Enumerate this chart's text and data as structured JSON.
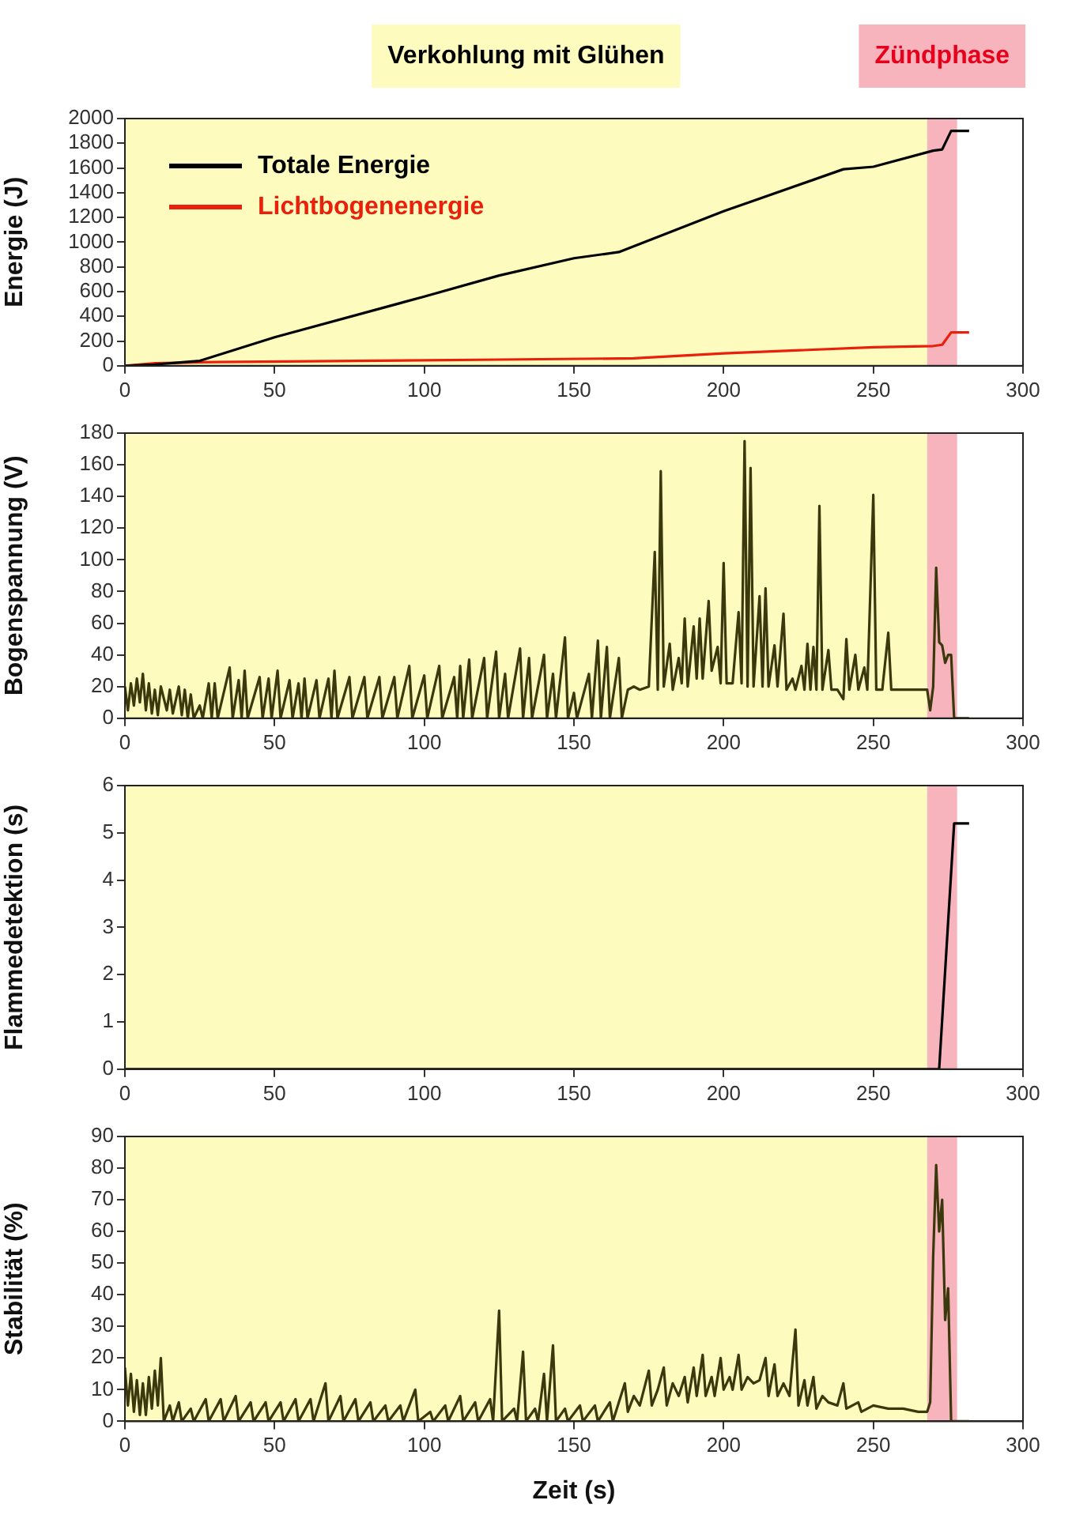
{
  "chart_data": [
    {
      "type": "line",
      "ylabel": "Energie (J)",
      "xlim": [
        0,
        300
      ],
      "xticks": [
        0,
        50,
        100,
        150,
        200,
        250,
        300
      ],
      "ylim": [
        0,
        2000
      ],
      "yticks": [
        0,
        200,
        400,
        600,
        800,
        1000,
        1200,
        1400,
        1600,
        1800,
        2000
      ],
      "grid": false,
      "legend": "top left",
      "marker": "none",
      "line_style": "solid",
      "bands": [
        {
          "axis": "x",
          "from": 0,
          "to": 268,
          "label": "Verkohlung mit Glühen",
          "color": "#fdfbbd"
        },
        {
          "axis": "x",
          "from": 268,
          "to": 278,
          "label": "Zündphase",
          "color": "#f8b4bc"
        }
      ],
      "series": [
        {
          "name": "Totale Energie",
          "color": "#000000",
          "x": [
            0,
            10,
            20,
            25,
            50,
            100,
            125,
            150,
            165,
            200,
            240,
            250,
            270,
            273,
            276,
            282
          ],
          "values": [
            0,
            10,
            30,
            40,
            230,
            560,
            730,
            870,
            920,
            1250,
            1590,
            1610,
            1740,
            1750,
            1900,
            1900
          ]
        },
        {
          "name": "Lichtbogenenergie",
          "color": "#e8200c",
          "x": [
            0,
            10,
            30,
            125,
            170,
            200,
            250,
            270,
            273,
            276,
            282
          ],
          "values": [
            0,
            20,
            30,
            50,
            60,
            100,
            150,
            160,
            170,
            270,
            270
          ]
        }
      ]
    },
    {
      "type": "line",
      "ylabel": "Bogenspannung (V)",
      "xlim": [
        0,
        300
      ],
      "xticks": [
        0,
        50,
        100,
        150,
        200,
        250,
        300
      ],
      "ylim": [
        0,
        180
      ],
      "yticks": [
        0,
        20,
        40,
        60,
        80,
        100,
        120,
        140,
        160,
        180
      ],
      "grid": false,
      "legend": false,
      "marker": "none",
      "line_style": "solid",
      "bands": [
        {
          "axis": "x",
          "from": 0,
          "to": 268,
          "color": "#fdfbbd"
        },
        {
          "axis": "x",
          "from": 268,
          "to": 278,
          "color": "#f8b4bc"
        }
      ],
      "series": [
        {
          "color": "#3a380c",
          "x": [
            0,
            1,
            2,
            3,
            4,
            5,
            6,
            7,
            8,
            9,
            10,
            11,
            12,
            14,
            15,
            16,
            18,
            19,
            20,
            21,
            22,
            23,
            25,
            26,
            28,
            29,
            30,
            31,
            35,
            36,
            38,
            39,
            40,
            41,
            45,
            46,
            48,
            49,
            51,
            52,
            55,
            56,
            58,
            59,
            60,
            61,
            64,
            65,
            68,
            69,
            70,
            71,
            75,
            76,
            80,
            81,
            85,
            86,
            90,
            91,
            95,
            96,
            100,
            101,
            105,
            106,
            110,
            111,
            112,
            113,
            115,
            116,
            120,
            121,
            124,
            125,
            127,
            128,
            132,
            133,
            135,
            136,
            140,
            141,
            143,
            144,
            147,
            148,
            150,
            151,
            155,
            156,
            158,
            159,
            161,
            162,
            165,
            166,
            168,
            170,
            172,
            175,
            177,
            178,
            179,
            180,
            182,
            183,
            185,
            186,
            187,
            188,
            190,
            191,
            192,
            193,
            195,
            196,
            198,
            199,
            200,
            201,
            203,
            205,
            206,
            207,
            208,
            209,
            210,
            212,
            213,
            214,
            215,
            217,
            218,
            220,
            221,
            223,
            224,
            226,
            227,
            228,
            229,
            230,
            231,
            232,
            233,
            235,
            236,
            238,
            240,
            241,
            242,
            244,
            245,
            247,
            248,
            250,
            251,
            253,
            255,
            256,
            260,
            268,
            269,
            270,
            271,
            272,
            273,
            274,
            275,
            276,
            277,
            282
          ],
          "values": [
            20,
            5,
            22,
            8,
            25,
            10,
            28,
            5,
            22,
            3,
            18,
            2,
            20,
            5,
            18,
            3,
            20,
            2,
            18,
            0,
            15,
            0,
            8,
            0,
            22,
            0,
            22,
            0,
            32,
            0,
            24,
            0,
            30,
            0,
            26,
            0,
            25,
            0,
            30,
            0,
            24,
            0,
            22,
            0,
            25,
            0,
            24,
            0,
            25,
            0,
            30,
            0,
            26,
            0,
            26,
            0,
            26,
            0,
            26,
            0,
            33,
            0,
            27,
            0,
            33,
            0,
            26,
            0,
            33,
            0,
            37,
            0,
            38,
            0,
            42,
            0,
            28,
            0,
            44,
            0,
            38,
            0,
            40,
            0,
            28,
            0,
            51,
            0,
            16,
            0,
            28,
            0,
            49,
            0,
            45,
            0,
            38,
            0,
            18,
            20,
            18,
            20,
            105,
            18,
            156,
            20,
            47,
            18,
            38,
            22,
            63,
            20,
            58,
            25,
            63,
            25,
            74,
            30,
            45,
            22,
            98,
            22,
            22,
            67,
            22,
            175,
            20,
            158,
            20,
            77,
            20,
            82,
            20,
            46,
            20,
            66,
            18,
            25,
            18,
            33,
            18,
            47,
            18,
            45,
            18,
            134,
            18,
            43,
            18,
            18,
            12,
            50,
            18,
            40,
            18,
            32,
            18,
            141,
            18,
            18,
            54,
            18,
            18,
            18,
            5,
            20,
            95,
            48,
            46,
            35,
            40,
            40,
            0,
            0
          ]
        }
      ]
    },
    {
      "type": "line",
      "ylabel": "Flammedetektion (s)",
      "xlim": [
        0,
        300
      ],
      "xticks": [
        0,
        50,
        100,
        150,
        200,
        250,
        300
      ],
      "ylim": [
        0,
        6
      ],
      "yticks": [
        0,
        1,
        2,
        3,
        4,
        5,
        6
      ],
      "grid": false,
      "legend": false,
      "marker": "none",
      "line_style": "solid",
      "bands": [
        {
          "axis": "x",
          "from": 0,
          "to": 268,
          "color": "#fdfbbd"
        },
        {
          "axis": "x",
          "from": 268,
          "to": 278,
          "color": "#f8b4bc"
        }
      ],
      "series": [
        {
          "color": "#000000",
          "x": [
            0,
            272,
            277,
            282
          ],
          "values": [
            0,
            0,
            5.2,
            5.2
          ]
        }
      ]
    },
    {
      "type": "line",
      "ylabel": "Stabilität (%)",
      "xlabel": "Zeit (s)",
      "xlim": [
        0,
        300
      ],
      "xticks": [
        0,
        50,
        100,
        150,
        200,
        250,
        300
      ],
      "ylim": [
        0,
        90
      ],
      "yticks": [
        0,
        10,
        20,
        30,
        40,
        50,
        60,
        70,
        80,
        90
      ],
      "grid": false,
      "legend": false,
      "marker": "none",
      "line_style": "solid",
      "bands": [
        {
          "axis": "x",
          "from": 0,
          "to": 268,
          "color": "#fdfbbd"
        },
        {
          "axis": "x",
          "from": 268,
          "to": 278,
          "color": "#f8b4bc"
        }
      ],
      "series": [
        {
          "color": "#3a380c",
          "x": [
            0,
            1,
            2,
            3,
            4,
            5,
            6,
            7,
            8,
            9,
            10,
            11,
            12,
            13,
            15,
            16,
            18,
            19,
            22,
            23,
            27,
            28,
            32,
            33,
            37,
            38,
            42,
            43,
            47,
            48,
            52,
            53,
            57,
            58,
            62,
            63,
            67,
            68,
            72,
            73,
            77,
            78,
            82,
            83,
            87,
            88,
            92,
            93,
            97,
            98,
            102,
            103,
            107,
            108,
            112,
            113,
            117,
            118,
            122,
            123,
            125,
            126,
            130,
            131,
            133,
            134,
            137,
            138,
            140,
            141,
            143,
            144,
            147,
            148,
            152,
            153,
            157,
            158,
            162,
            163,
            167,
            168,
            170,
            172,
            175,
            176,
            178,
            180,
            181,
            183,
            185,
            187,
            188,
            190,
            191,
            193,
            194,
            196,
            197,
            199,
            200,
            202,
            203,
            205,
            206,
            208,
            210,
            212,
            214,
            215,
            217,
            218,
            220,
            222,
            224,
            225,
            227,
            228,
            230,
            231,
            233,
            235,
            238,
            240,
            241,
            245,
            246,
            250,
            255,
            260,
            265,
            268,
            269,
            270,
            271,
            272,
            273,
            274,
            275,
            276,
            282
          ],
          "values": [
            17,
            5,
            15,
            3,
            13,
            2,
            12,
            2,
            14,
            4,
            16,
            5,
            20,
            0,
            5,
            0,
            6,
            0,
            4,
            0,
            7,
            0,
            7,
            0,
            8,
            0,
            6,
            0,
            6,
            0,
            6,
            0,
            7,
            0,
            7,
            0,
            12,
            0,
            8,
            0,
            7,
            0,
            6,
            0,
            5,
            0,
            5,
            0,
            10,
            0,
            3,
            0,
            5,
            0,
            8,
            0,
            6,
            0,
            7,
            0,
            35,
            0,
            4,
            0,
            22,
            0,
            4,
            0,
            15,
            0,
            24,
            0,
            4,
            0,
            5,
            0,
            5,
            0,
            6,
            0,
            12,
            3,
            8,
            5,
            16,
            5,
            10,
            17,
            5,
            12,
            8,
            14,
            6,
            17,
            8,
            21,
            8,
            14,
            8,
            20,
            10,
            14,
            10,
            21,
            10,
            14,
            12,
            13,
            20,
            8,
            18,
            8,
            12,
            8,
            29,
            5,
            13,
            5,
            14,
            4,
            8,
            6,
            5,
            12,
            4,
            6,
            3,
            5,
            4,
            4,
            3,
            3,
            6,
            52,
            81,
            60,
            70,
            32,
            42,
            0,
            0
          ]
        }
      ]
    }
  ]
}
